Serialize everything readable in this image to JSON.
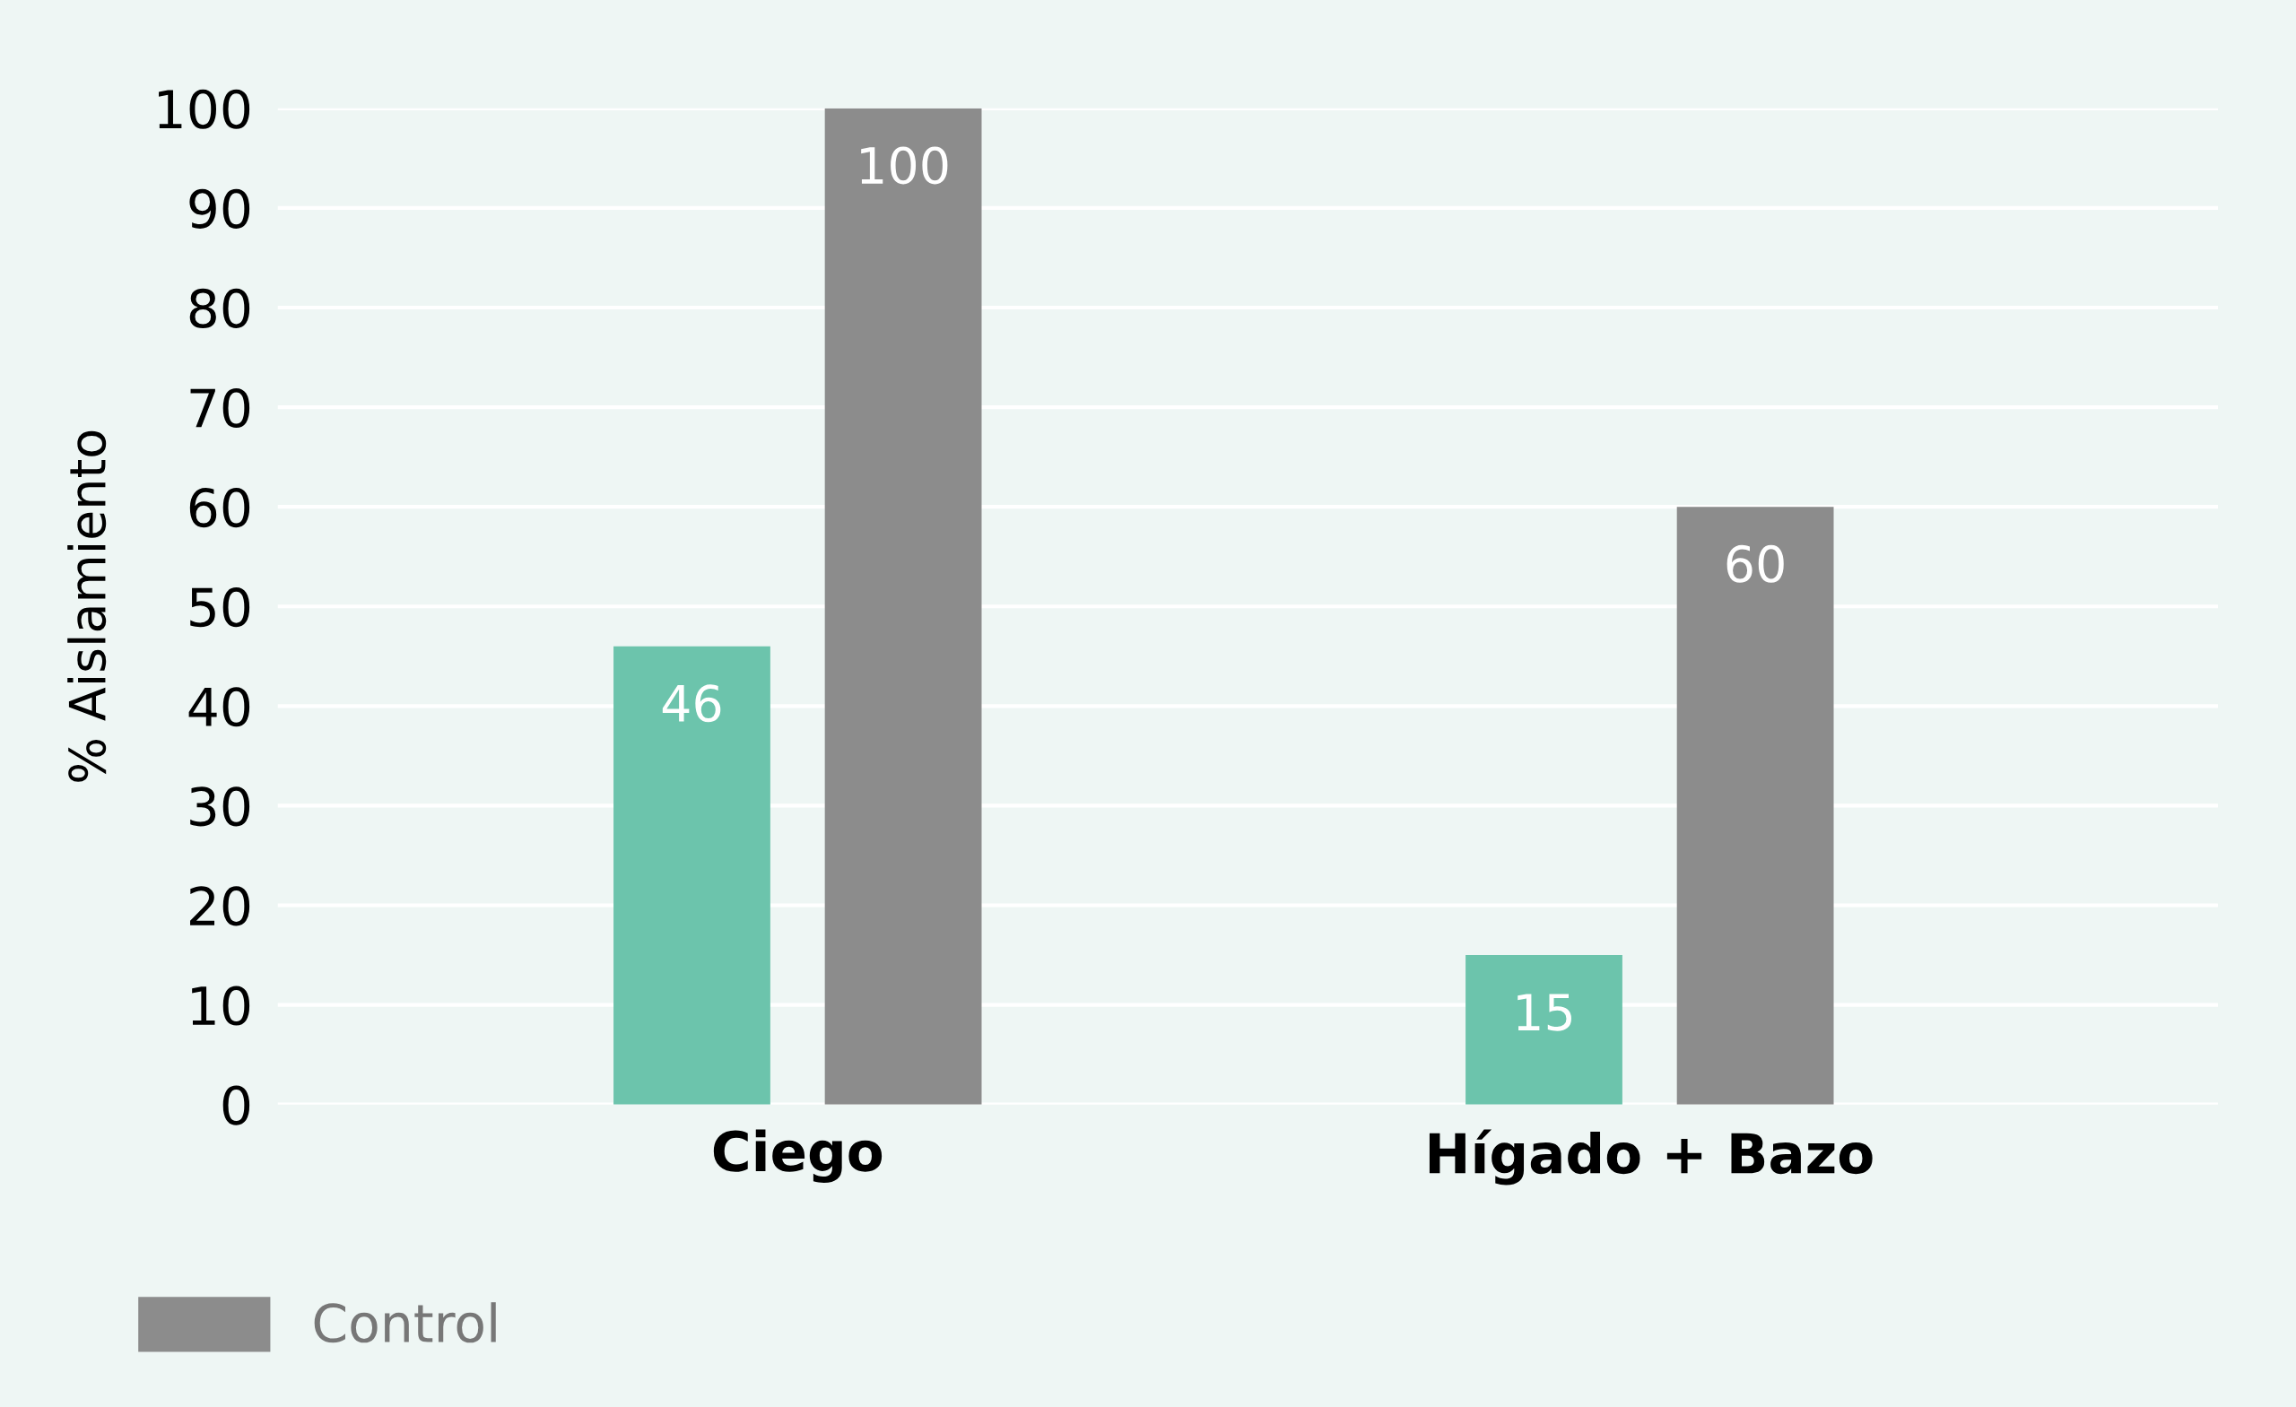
{
  "chart_data": {
    "type": "bar",
    "ylabel": "% Aislamiento",
    "categories": [
      "Ciego",
      "Hígado + Bazo"
    ],
    "series": [
      {
        "color": "#6cc4ac",
        "values": [
          46,
          15
        ]
      },
      {
        "name": "Control",
        "color": "#8c8c8c",
        "values": [
          100,
          60
        ]
      }
    ],
    "ylim": [
      0,
      100
    ],
    "yticks": [
      0,
      10,
      20,
      30,
      40,
      50,
      60,
      70,
      80,
      90,
      100
    ],
    "grid": "y",
    "data_labels": true,
    "legend": "bottom left"
  }
}
